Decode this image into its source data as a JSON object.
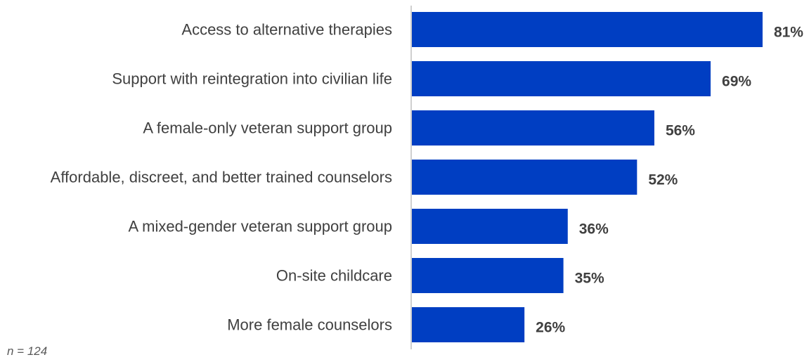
{
  "chart_data": {
    "type": "bar",
    "orientation": "horizontal",
    "categories": [
      "Access to alternative therapies",
      "Support with reintegration into civilian life",
      "A female-only veteran support group",
      "Affordable, discreet, and better trained counselors",
      "A mixed-gender veteran support group",
      "On-site childcare",
      "More female counselors"
    ],
    "values": [
      81,
      69,
      56,
      52,
      36,
      35,
      26
    ],
    "value_labels": [
      "81%",
      "69%",
      "56%",
      "52%",
      "36%",
      "35%",
      "26%"
    ],
    "title": "",
    "xlabel": "",
    "ylabel": "",
    "xlim": [
      0,
      100
    ],
    "grid": false,
    "legend": "none",
    "bar_color": "#003EC2",
    "note": "n = 124"
  }
}
